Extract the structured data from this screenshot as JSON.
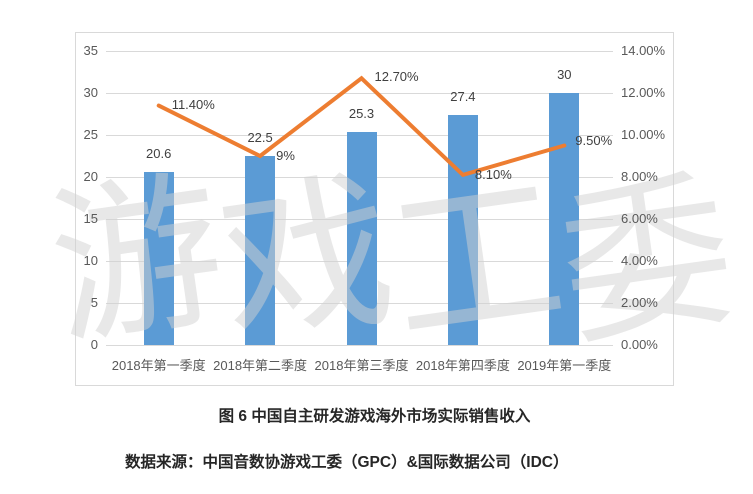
{
  "watermark": {
    "text": "游戏工委"
  },
  "caption": {
    "title": "图 6 中国自主研发游戏海外市场实际销售收入",
    "source": "数据来源：中国音数协游戏工委（GPC）&国际数据公司（IDC）"
  },
  "chart_data": {
    "type": "bar+line",
    "categories": [
      "2018年第一季度",
      "2018年第二季度",
      "2018年第三季度",
      "2018年第四季度",
      "2019年第一季度"
    ],
    "series": [
      {
        "type": "bar",
        "axis": "left",
        "values": [
          20.6,
          22.5,
          25.3,
          27.4,
          30
        ],
        "labels": [
          "20.6",
          "22.5",
          "25.3",
          "27.4",
          "30"
        ],
        "color": "#5B9BD5"
      },
      {
        "type": "line",
        "axis": "right",
        "values": [
          11.4,
          9.0,
          12.7,
          8.1,
          9.5
        ],
        "labels": [
          "11.40%",
          "9%",
          "12.70%",
          "8.10%",
          "9.50%"
        ],
        "color": "#ED7D31"
      }
    ],
    "left_axis": {
      "min": 0,
      "max": 35,
      "ticks": [
        "0",
        "5",
        "10",
        "15",
        "20",
        "25",
        "30",
        "35"
      ]
    },
    "right_axis": {
      "min": 0,
      "max": 14,
      "ticks": [
        "0.00%",
        "2.00%",
        "4.00%",
        "6.00%",
        "8.00%",
        "10.00%",
        "12.00%",
        "14.00%"
      ]
    },
    "grid": true,
    "legend_position": "none",
    "colors": {
      "bar": "#5B9BD5",
      "line": "#ED7D31",
      "grid": "#D9D9D9",
      "frame_border": "#D9D9D9",
      "tick_text": "#595959",
      "label_text": "#404040"
    }
  }
}
